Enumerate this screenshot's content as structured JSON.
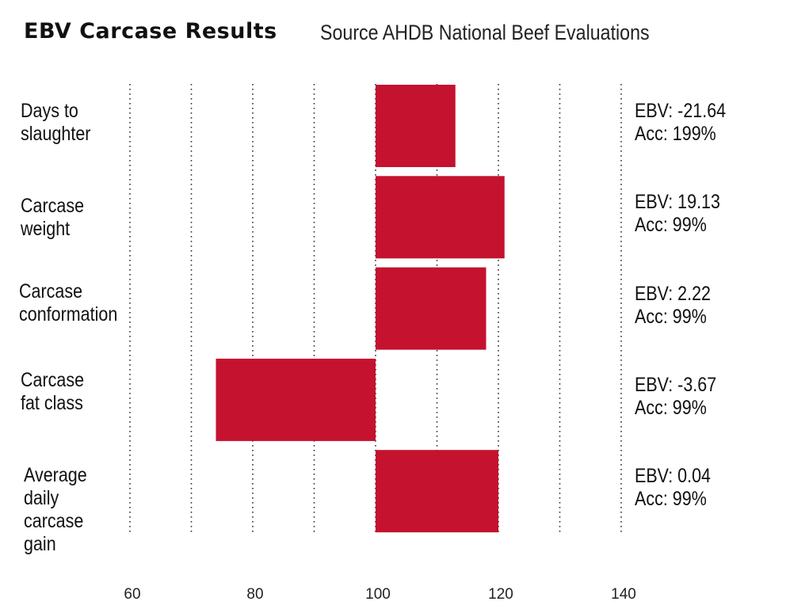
{
  "chart_data": {
    "type": "bar",
    "orientation": "horizontal",
    "title": "EBV Carcase Results",
    "subtitle": "Source AHDB National Beef Evaluations",
    "categories": [
      [
        "Days to",
        "slaughter"
      ],
      [
        "Carcase",
        "weight"
      ],
      [
        "Carcase",
        "conformation"
      ],
      [
        "Carcase",
        "fat class"
      ],
      [
        "Average",
        "daily",
        "carcase",
        "gain"
      ]
    ],
    "values": [
      113,
      121,
      118,
      74,
      120
    ],
    "baseline": 100,
    "xlim": [
      60,
      140
    ],
    "xticks": [
      60,
      80,
      100,
      120,
      140
    ],
    "grid": true,
    "bar_color": "#c4122f",
    "annotations": [
      [
        "EBV: -21.64",
        "Acc: 199%"
      ],
      [
        "EBV: 19.13",
        "Acc: 99%"
      ],
      [
        "EBV: 2.22",
        "Acc: 99%"
      ],
      [
        "EBV: -3.67",
        "Acc: 99%"
      ],
      [
        "EBV: 0.04",
        "Acc: 99%"
      ]
    ]
  }
}
